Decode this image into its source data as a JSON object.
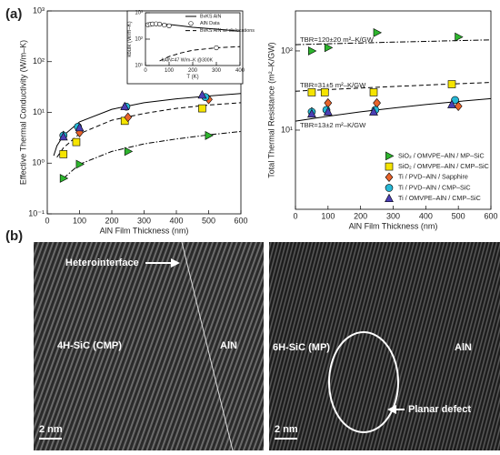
{
  "figure": {
    "panel_a_label": "(a)",
    "panel_b_label": "(b)"
  },
  "chart_data": [
    {
      "type": "scatter",
      "xlabel": "AlN Film Thickness (nm)",
      "ylabel": "Effective Thermal Conductivity (W/m–K)",
      "xlim": [
        0,
        600
      ],
      "xticks": [
        0,
        100,
        200,
        300,
        400,
        500,
        600
      ],
      "ylog": true,
      "ylim": [
        0.1,
        1000
      ],
      "yticks": [
        {
          "value": 0.1,
          "label": "10⁻¹"
        },
        {
          "value": 1,
          "label": "10⁰"
        },
        {
          "value": 10,
          "label": "10¹"
        },
        {
          "value": 100,
          "label": "10²"
        },
        {
          "value": 1000,
          "label": "10³"
        }
      ],
      "curves": [
        {
          "style": "solid",
          "x": [
            20,
            30,
            50,
            100,
            200,
            300,
            400,
            500,
            600
          ],
          "values": [
            1.4,
            2.2,
            3.5,
            6.5,
            11.5,
            15.5,
            18.5,
            21,
            23.5
          ]
        },
        {
          "style": "dashed",
          "x": [
            30,
            50,
            100,
            200,
            300,
            400,
            500,
            600
          ],
          "values": [
            1.3,
            2,
            3.8,
            7,
            9.5,
            12,
            14,
            15.5
          ]
        },
        {
          "style": "dashdot",
          "x": [
            50,
            100,
            200,
            300,
            400,
            500,
            600
          ],
          "values": [
            0.5,
            0.95,
            1.7,
            2.4,
            3,
            3.6,
            4.2
          ]
        }
      ],
      "series": [
        {
          "marker": "triangle-right",
          "color": "#2db52d",
          "x": [
            50,
            100,
            250,
            500
          ],
          "values": [
            0.5,
            0.95,
            1.7,
            3.5
          ]
        },
        {
          "marker": "square",
          "color": "#f5e400",
          "x": [
            50,
            90,
            240,
            480
          ],
          "values": [
            1.5,
            2.6,
            6.8,
            12
          ]
        },
        {
          "marker": "diamond",
          "color": "#e8632b",
          "x": [
            50,
            100,
            250,
            500
          ],
          "values": [
            3.5,
            4,
            8,
            18
          ]
        },
        {
          "marker": "circle",
          "color": "#27b8d6",
          "x": [
            50,
            95,
            245,
            490
          ],
          "values": [
            3.5,
            5.2,
            13,
            20
          ]
        },
        {
          "marker": "triangle-up",
          "color": "#4b3fb5",
          "x": [
            50,
            100,
            240,
            480
          ],
          "values": [
            3.3,
            5,
            13,
            22
          ]
        }
      ]
    },
    {
      "type": "scatter",
      "xlabel": "AlN Film Thickness (nm)",
      "ylabel": "Total Thermal Resistance (m²–K/GW)",
      "xlim": [
        0,
        600
      ],
      "xticks": [
        0,
        100,
        200,
        300,
        400,
        500,
        600
      ],
      "ylog": true,
      "ylim": [
        1,
        320
      ],
      "yticks": [
        {
          "value": 10,
          "label": "10¹"
        },
        {
          "value": 100,
          "label": "10²"
        }
      ],
      "curves": [
        {
          "style": "dashdot",
          "x": [
            0,
            100,
            200,
            300,
            400,
            500,
            600
          ],
          "values": [
            120,
            123,
            126,
            129,
            132,
            135,
            138
          ]
        },
        {
          "style": "dashed",
          "x": [
            0,
            100,
            200,
            300,
            400,
            500,
            600
          ],
          "values": [
            31,
            32.5,
            34,
            35.5,
            37,
            38.5,
            40
          ]
        },
        {
          "style": "solid",
          "x": [
            0,
            100,
            200,
            300,
            400,
            500,
            600
          ],
          "values": [
            13,
            15,
            17,
            19,
            21,
            23,
            25
          ]
        }
      ],
      "annotations": [
        "TBR=120±20 m²–K/GW",
        "TBR=31±5 m²–K/GW",
        "TBR=13±2 m²–K/GW"
      ],
      "legend": "lower right",
      "series": [
        {
          "name": "SiO₂ / OMVPE–AlN / MP–SiC",
          "marker": "triangle-right",
          "color": "#2db52d",
          "x": [
            50,
            100,
            250,
            500
          ],
          "values": [
            100,
            110,
            170,
            150
          ]
        },
        {
          "name": "SiO₂ / OMVPE–AlN / CMP–SiC",
          "marker": "square",
          "color": "#f5e400",
          "x": [
            50,
            90,
            240,
            480
          ],
          "values": [
            30,
            30,
            30,
            38
          ]
        },
        {
          "name": "Ti / PVD–AlN / Sapphire",
          "marker": "diamond",
          "color": "#e8632b",
          "x": [
            50,
            100,
            250,
            500
          ],
          "values": [
            17,
            22,
            22,
            20
          ]
        },
        {
          "name": "Ti / PVD–AlN / CMP–SiC",
          "marker": "circle",
          "color": "#27b8d6",
          "x": [
            50,
            95,
            245,
            490
          ],
          "values": [
            17,
            18,
            18,
            24
          ]
        },
        {
          "name": "Ti / OMVPE–AlN / CMP–SiC",
          "marker": "triangle-up",
          "color": "#4b3fb5",
          "x": [
            50,
            100,
            240,
            480
          ],
          "values": [
            16,
            17,
            17,
            21
          ]
        }
      ]
    },
    {
      "type": "scatter",
      "xlabel": "T (K)",
      "ylabel": "kbulk (W/m–K)",
      "xlim": [
        0,
        400
      ],
      "xticks": [
        0,
        100,
        200,
        300,
        400
      ],
      "ylog": true,
      "ylim": [
        10,
        1000
      ],
      "yticks": [
        {
          "value": 10,
          "label": "10¹"
        },
        {
          "value": 100,
          "label": "10²"
        },
        {
          "value": 1000,
          "label": "10³"
        }
      ],
      "legend": "upper right",
      "annotations": [
        "kAlN=47 W/m–K @300K"
      ],
      "curves": [
        {
          "name": "BvKS AlN",
          "style": "solid",
          "x": [
            10,
            30,
            60,
            100,
            150,
            200,
            300,
            400
          ],
          "values": [
            340,
            370,
            380,
            360,
            320,
            280,
            240,
            200
          ]
        },
        {
          "name": "BvKS AlN w/ dislocations",
          "style": "dashed",
          "x": [
            60,
            100,
            150,
            200,
            300,
            400
          ],
          "values": [
            15,
            22,
            30,
            38,
            47,
            52
          ]
        }
      ],
      "series": [
        {
          "name": "AlN Data",
          "marker": "circle",
          "color": "#ffffff",
          "x": [
            10,
            20,
            30,
            45,
            60,
            80,
            100,
            300
          ],
          "values": [
            350,
            365,
            375,
            380,
            370,
            340,
            320,
            47
          ]
        }
      ]
    }
  ],
  "images": [
    {
      "labels": [
        "Heterointerface",
        "4H-SiC (CMP)",
        "AlN",
        "2 nm"
      ]
    },
    {
      "labels": [
        "6H-SiC (MP)",
        "AlN",
        "Planar defect",
        "2 nm"
      ]
    }
  ]
}
